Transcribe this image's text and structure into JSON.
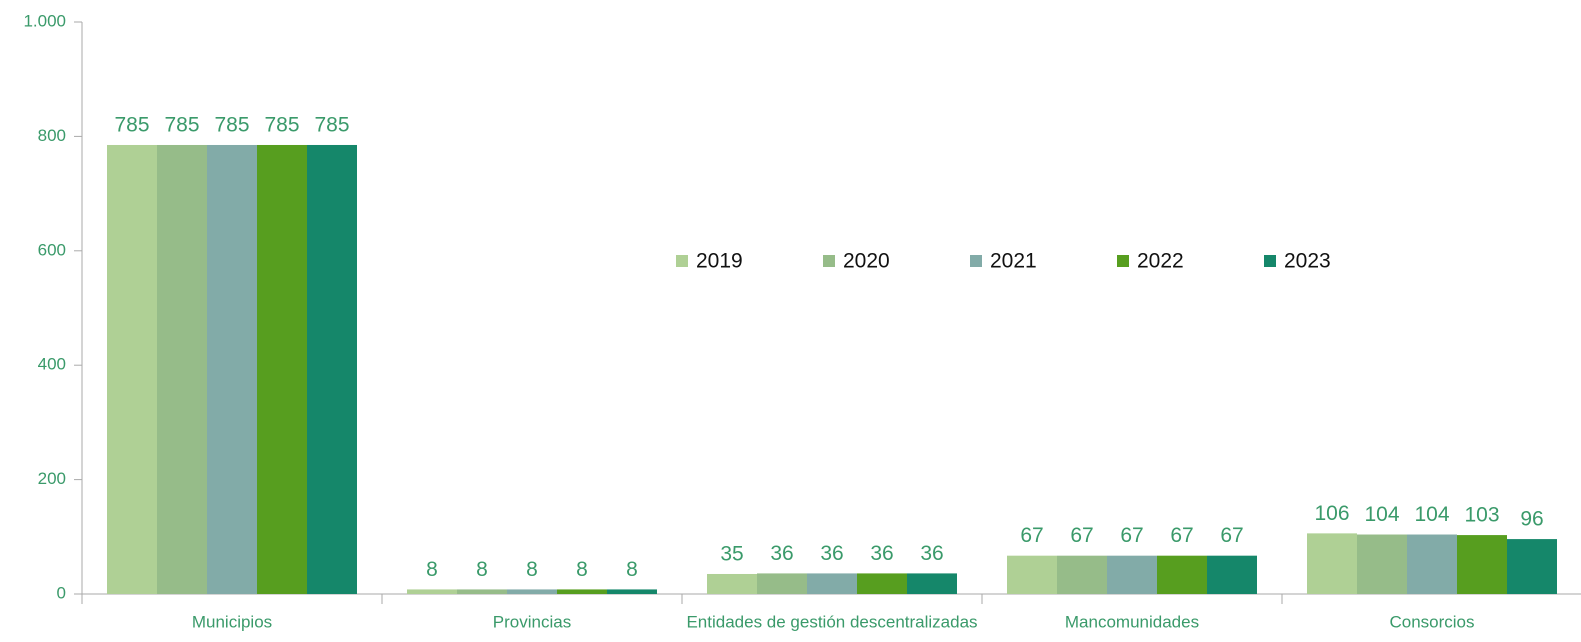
{
  "chart_data": {
    "type": "bar",
    "categories": [
      "Municipios",
      "Provincias",
      "Entidades de gestión descentralizadas",
      "Mancomunidades",
      "Consorcios"
    ],
    "series": [
      {
        "name": "2019",
        "color": "#afd095",
        "values": [
          785,
          8,
          35,
          67,
          106
        ]
      },
      {
        "name": "2020",
        "color": "#96bc89",
        "values": [
          785,
          8,
          36,
          67,
          104
        ]
      },
      {
        "name": "2021",
        "color": "#82aba8",
        "values": [
          785,
          8,
          36,
          67,
          104
        ]
      },
      {
        "name": "2022",
        "color": "#579e1f",
        "values": [
          785,
          8,
          36,
          67,
          103
        ]
      },
      {
        "name": "2023",
        "color": "#15876a",
        "values": [
          785,
          8,
          36,
          67,
          96
        ]
      }
    ],
    "ylim": [
      0,
      1000
    ],
    "yticks": [
      0,
      200,
      400,
      600,
      800,
      {
        "value": 1000,
        "label": "1.000"
      }
    ],
    "grid": false,
    "legend": "center"
  }
}
